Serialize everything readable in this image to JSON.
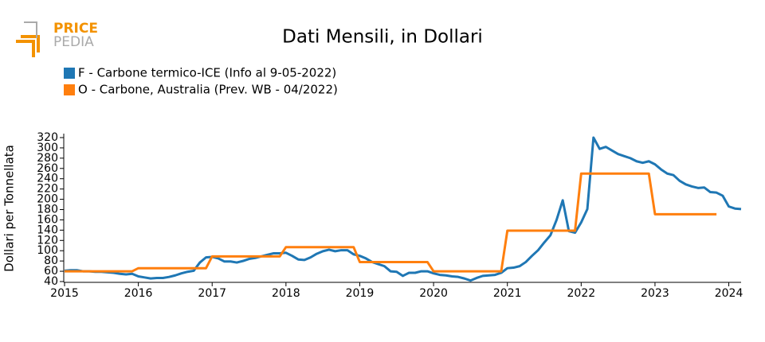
{
  "logo": {
    "line1": "PRICE",
    "line2": "PEDIA"
  },
  "chart_data": {
    "type": "line",
    "title": "Dati Mensili, in Dollari",
    "y_label": "Dollari per Tonnellata",
    "x": [
      "2015-01",
      "2015-02",
      "2015-03",
      "2015-04",
      "2015-05",
      "2015-06",
      "2015-07",
      "2015-08",
      "2015-09",
      "2015-10",
      "2015-11",
      "2015-12",
      "2016-01",
      "2016-02",
      "2016-03",
      "2016-04",
      "2016-05",
      "2016-06",
      "2016-07",
      "2016-08",
      "2016-09",
      "2016-10",
      "2016-11",
      "2016-12",
      "2017-01",
      "2017-02",
      "2017-03",
      "2017-04",
      "2017-05",
      "2017-06",
      "2017-07",
      "2017-08",
      "2017-09",
      "2017-10",
      "2017-11",
      "2017-12",
      "2018-01",
      "2018-02",
      "2018-03",
      "2018-04",
      "2018-05",
      "2018-06",
      "2018-07",
      "2018-08",
      "2018-09",
      "2018-10",
      "2018-11",
      "2018-12",
      "2019-01",
      "2019-02",
      "2019-03",
      "2019-04",
      "2019-05",
      "2019-06",
      "2019-07",
      "2019-08",
      "2019-09",
      "2019-10",
      "2019-11",
      "2019-12",
      "2020-01",
      "2020-02",
      "2020-03",
      "2020-04",
      "2020-05",
      "2020-06",
      "2020-07",
      "2020-08",
      "2020-09",
      "2020-10",
      "2020-11",
      "2020-12",
      "2021-01",
      "2021-02",
      "2021-03",
      "2021-04",
      "2021-05",
      "2021-06",
      "2021-07",
      "2021-08",
      "2021-09",
      "2021-10",
      "2021-11",
      "2021-12",
      "2022-01",
      "2022-02",
      "2022-03",
      "2022-04",
      "2022-05",
      "2022-06",
      "2022-07",
      "2022-08",
      "2022-09",
      "2022-10",
      "2022-11",
      "2022-12",
      "2023-01",
      "2023-02",
      "2023-03",
      "2023-04",
      "2023-05",
      "2023-06",
      "2023-07",
      "2023-08",
      "2023-09",
      "2023-10",
      "2023-11",
      "2023-12",
      "2024-01",
      "2024-02",
      "2024-03"
    ],
    "series": [
      {
        "name": "F - Carbone termico-ICE (Info al 9-05-2022)",
        "color": "#1f77b4",
        "values": [
          61,
          62,
          62,
          60,
          60,
          59,
          59,
          58,
          57,
          55,
          54,
          55,
          50,
          48,
          46,
          47,
          47,
          49,
          52,
          56,
          59,
          61,
          77,
          87,
          88,
          85,
          79,
          79,
          77,
          80,
          84,
          86,
          89,
          92,
          95,
          95,
          96,
          90,
          83,
          82,
          87,
          94,
          99,
          102,
          99,
          101,
          101,
          93,
          90,
          85,
          78,
          74,
          70,
          60,
          59,
          51,
          57,
          57,
          60,
          60,
          56,
          53,
          52,
          50,
          49,
          46,
          42,
          47,
          51,
          52,
          53,
          57,
          66,
          67,
          70,
          78,
          90,
          101,
          116,
          130,
          160,
          198,
          138,
          135,
          155,
          181,
          320,
          298,
          302,
          295,
          288,
          284,
          280,
          274,
          271,
          274,
          268,
          258,
          250,
          247,
          236,
          229,
          225,
          222,
          223,
          214,
          213,
          207,
          186,
          182,
          181
        ]
      },
      {
        "name": "O - Carbone, Australia (Prev. WB - 04/2022)",
        "color": "#ff7f0e",
        "values": [
          60,
          60,
          60,
          60,
          60,
          60,
          60,
          60,
          60,
          60,
          60,
          60,
          66,
          66,
          66,
          66,
          66,
          66,
          66,
          66,
          66,
          66,
          66,
          66,
          89,
          89,
          89,
          89,
          89,
          89,
          89,
          89,
          89,
          89,
          89,
          89,
          107,
          107,
          107,
          107,
          107,
          107,
          107,
          107,
          107,
          107,
          107,
          107,
          78,
          78,
          78,
          78,
          78,
          78,
          78,
          78,
          78,
          78,
          78,
          78,
          60,
          60,
          60,
          60,
          60,
          60,
          60,
          60,
          60,
          60,
          60,
          60,
          139,
          139,
          139,
          139,
          139,
          139,
          139,
          139,
          139,
          139,
          139,
          139,
          250,
          250,
          250,
          250,
          250,
          250,
          250,
          250,
          250,
          250,
          250,
          250,
          171,
          171,
          171,
          171,
          171,
          171,
          171,
          171,
          171,
          171,
          171,
          null,
          null,
          null,
          null
        ]
      }
    ],
    "xlim": [
      "2015-01",
      "2024-03"
    ],
    "xticks": [
      {
        "value": "2015-01",
        "label": "2015"
      },
      {
        "value": "2016-01",
        "label": "2016"
      },
      {
        "value": "2017-01",
        "label": "2017"
      },
      {
        "value": "2018-01",
        "label": "2018"
      },
      {
        "value": "2019-01",
        "label": "2019"
      },
      {
        "value": "2020-01",
        "label": "2020"
      },
      {
        "value": "2021-01",
        "label": "2021"
      },
      {
        "value": "2022-01",
        "label": "2022"
      },
      {
        "value": "2023-01",
        "label": "2023"
      },
      {
        "value": "2024-01",
        "label": "2024"
      }
    ],
    "ylim": [
      40,
      320
    ],
    "yticks": [
      40,
      60,
      80,
      100,
      120,
      140,
      160,
      180,
      200,
      220,
      240,
      260,
      280,
      300,
      320
    ],
    "grid": false,
    "legend": "top-left"
  }
}
